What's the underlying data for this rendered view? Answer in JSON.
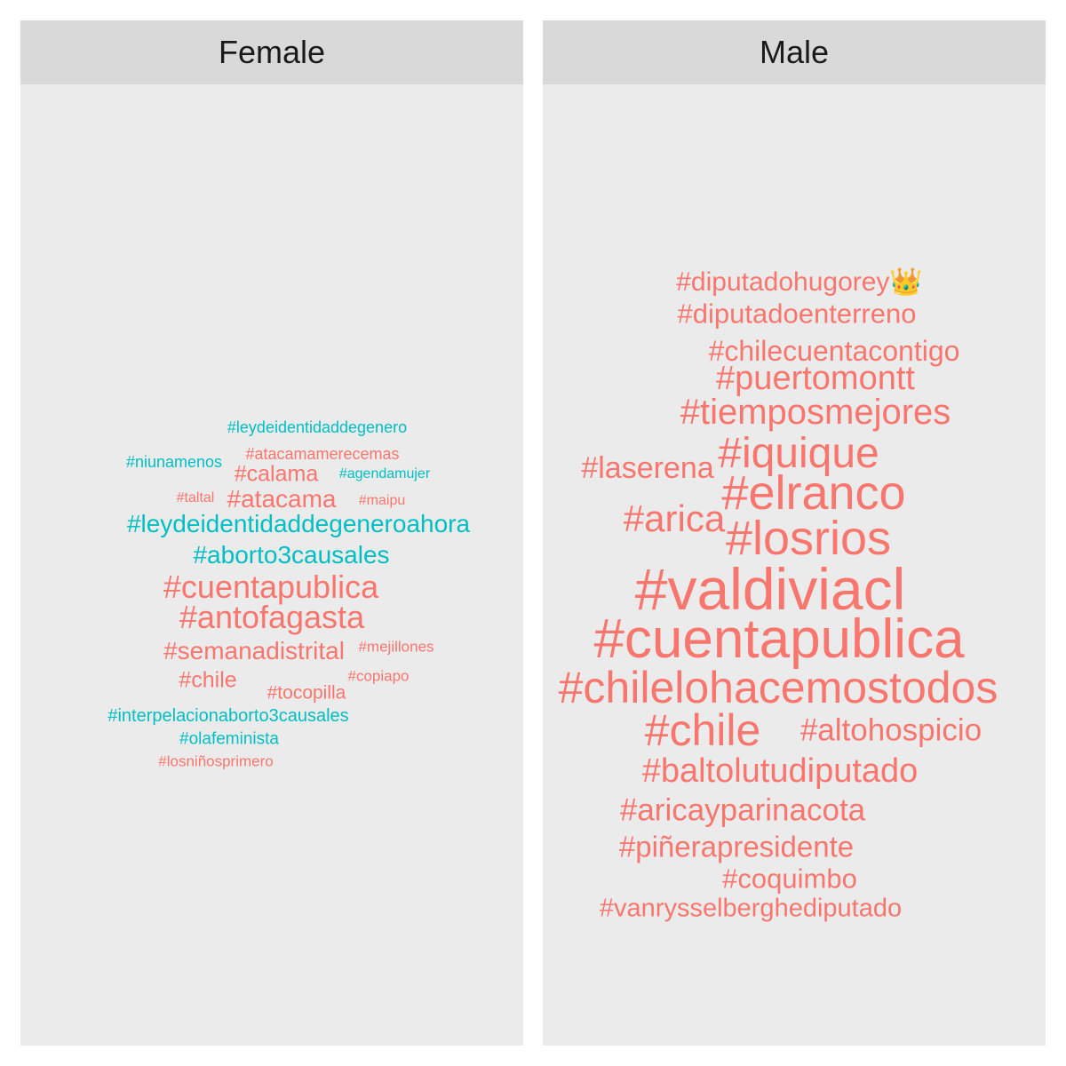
{
  "chart_data": {
    "type": "wordcloud",
    "colors": {
      "cat_a": "#F8766D",
      "cat_b": "#00BFC4"
    },
    "facets": [
      {
        "name": "Female",
        "words": [
          {
            "text": "#leydeidentidaddegenero",
            "weight": 18,
            "color": "#00BFC4"
          },
          {
            "text": "#niunamenos",
            "weight": 18,
            "color": "#00BFC4"
          },
          {
            "text": "#atacamamerecemas",
            "weight": 18,
            "color": "#F8766D"
          },
          {
            "text": "#calama",
            "weight": 25,
            "color": "#F8766D"
          },
          {
            "text": "#agendamujer",
            "weight": 16,
            "color": "#00BFC4"
          },
          {
            "text": "#taltal",
            "weight": 16,
            "color": "#F8766D"
          },
          {
            "text": "#atacama",
            "weight": 28,
            "color": "#F8766D"
          },
          {
            "text": "#maipu",
            "weight": 16,
            "color": "#F8766D"
          },
          {
            "text": "#leydeidentidaddegeneroahora",
            "weight": 28,
            "color": "#00BFC4"
          },
          {
            "text": "#aborto3causales",
            "weight": 28,
            "color": "#00BFC4"
          },
          {
            "text": "#cuentapublica",
            "weight": 36,
            "color": "#F8766D"
          },
          {
            "text": "#antofagasta",
            "weight": 36,
            "color": "#F8766D"
          },
          {
            "text": "#semanadistrital",
            "weight": 28,
            "color": "#F8766D"
          },
          {
            "text": "#mejillones",
            "weight": 17,
            "color": "#F8766D"
          },
          {
            "text": "#chile",
            "weight": 25,
            "color": "#F8766D"
          },
          {
            "text": "#copiapo",
            "weight": 17,
            "color": "#F8766D"
          },
          {
            "text": "#tocopilla",
            "weight": 21,
            "color": "#F8766D"
          },
          {
            "text": "#interpelacionaborto3causales",
            "weight": 20,
            "color": "#00BFC4"
          },
          {
            "text": "#olafeminista",
            "weight": 19,
            "color": "#00BFC4"
          },
          {
            "text": "#losniñosprimero",
            "weight": 17,
            "color": "#F8766D"
          }
        ]
      },
      {
        "name": "Male",
        "words": [
          {
            "text": "#diputadohugorey👑",
            "weight": 30,
            "color": "#F8766D"
          },
          {
            "text": "#diputadoenterreno",
            "weight": 31,
            "color": "#F8766D"
          },
          {
            "text": "#chilecuentacontigo",
            "weight": 32,
            "color": "#F8766D"
          },
          {
            "text": "#puertomontt",
            "weight": 38,
            "color": "#F8766D"
          },
          {
            "text": "#tiemposmejores",
            "weight": 40,
            "color": "#F8766D"
          },
          {
            "text": "#laserena",
            "weight": 34,
            "color": "#F8766D"
          },
          {
            "text": "#iquique",
            "weight": 48,
            "color": "#F8766D"
          },
          {
            "text": "#elranco",
            "weight": 54,
            "color": "#F8766D"
          },
          {
            "text": "#arica",
            "weight": 42,
            "color": "#F8766D"
          },
          {
            "text": "#losrios",
            "weight": 54,
            "color": "#F8766D"
          },
          {
            "text": "#valdiviacl",
            "weight": 66,
            "color": "#F8766D"
          },
          {
            "text": "#cuentapublica",
            "weight": 62,
            "color": "#F8766D"
          },
          {
            "text": "#chilelohacemostodos",
            "weight": 50,
            "color": "#F8766D"
          },
          {
            "text": "#chile",
            "weight": 50,
            "color": "#F8766D"
          },
          {
            "text": "#altohospicio",
            "weight": 35,
            "color": "#F8766D"
          },
          {
            "text": "#baltolutudiputado",
            "weight": 38,
            "color": "#F8766D"
          },
          {
            "text": "#aricayparinacota",
            "weight": 35,
            "color": "#F8766D"
          },
          {
            "text": "#piñerapresidente",
            "weight": 33,
            "color": "#F8766D"
          },
          {
            "text": "#coquimbo",
            "weight": 31,
            "color": "#F8766D"
          },
          {
            "text": "#vanrysselberghediputado",
            "weight": 29,
            "color": "#F8766D"
          }
        ]
      }
    ]
  }
}
